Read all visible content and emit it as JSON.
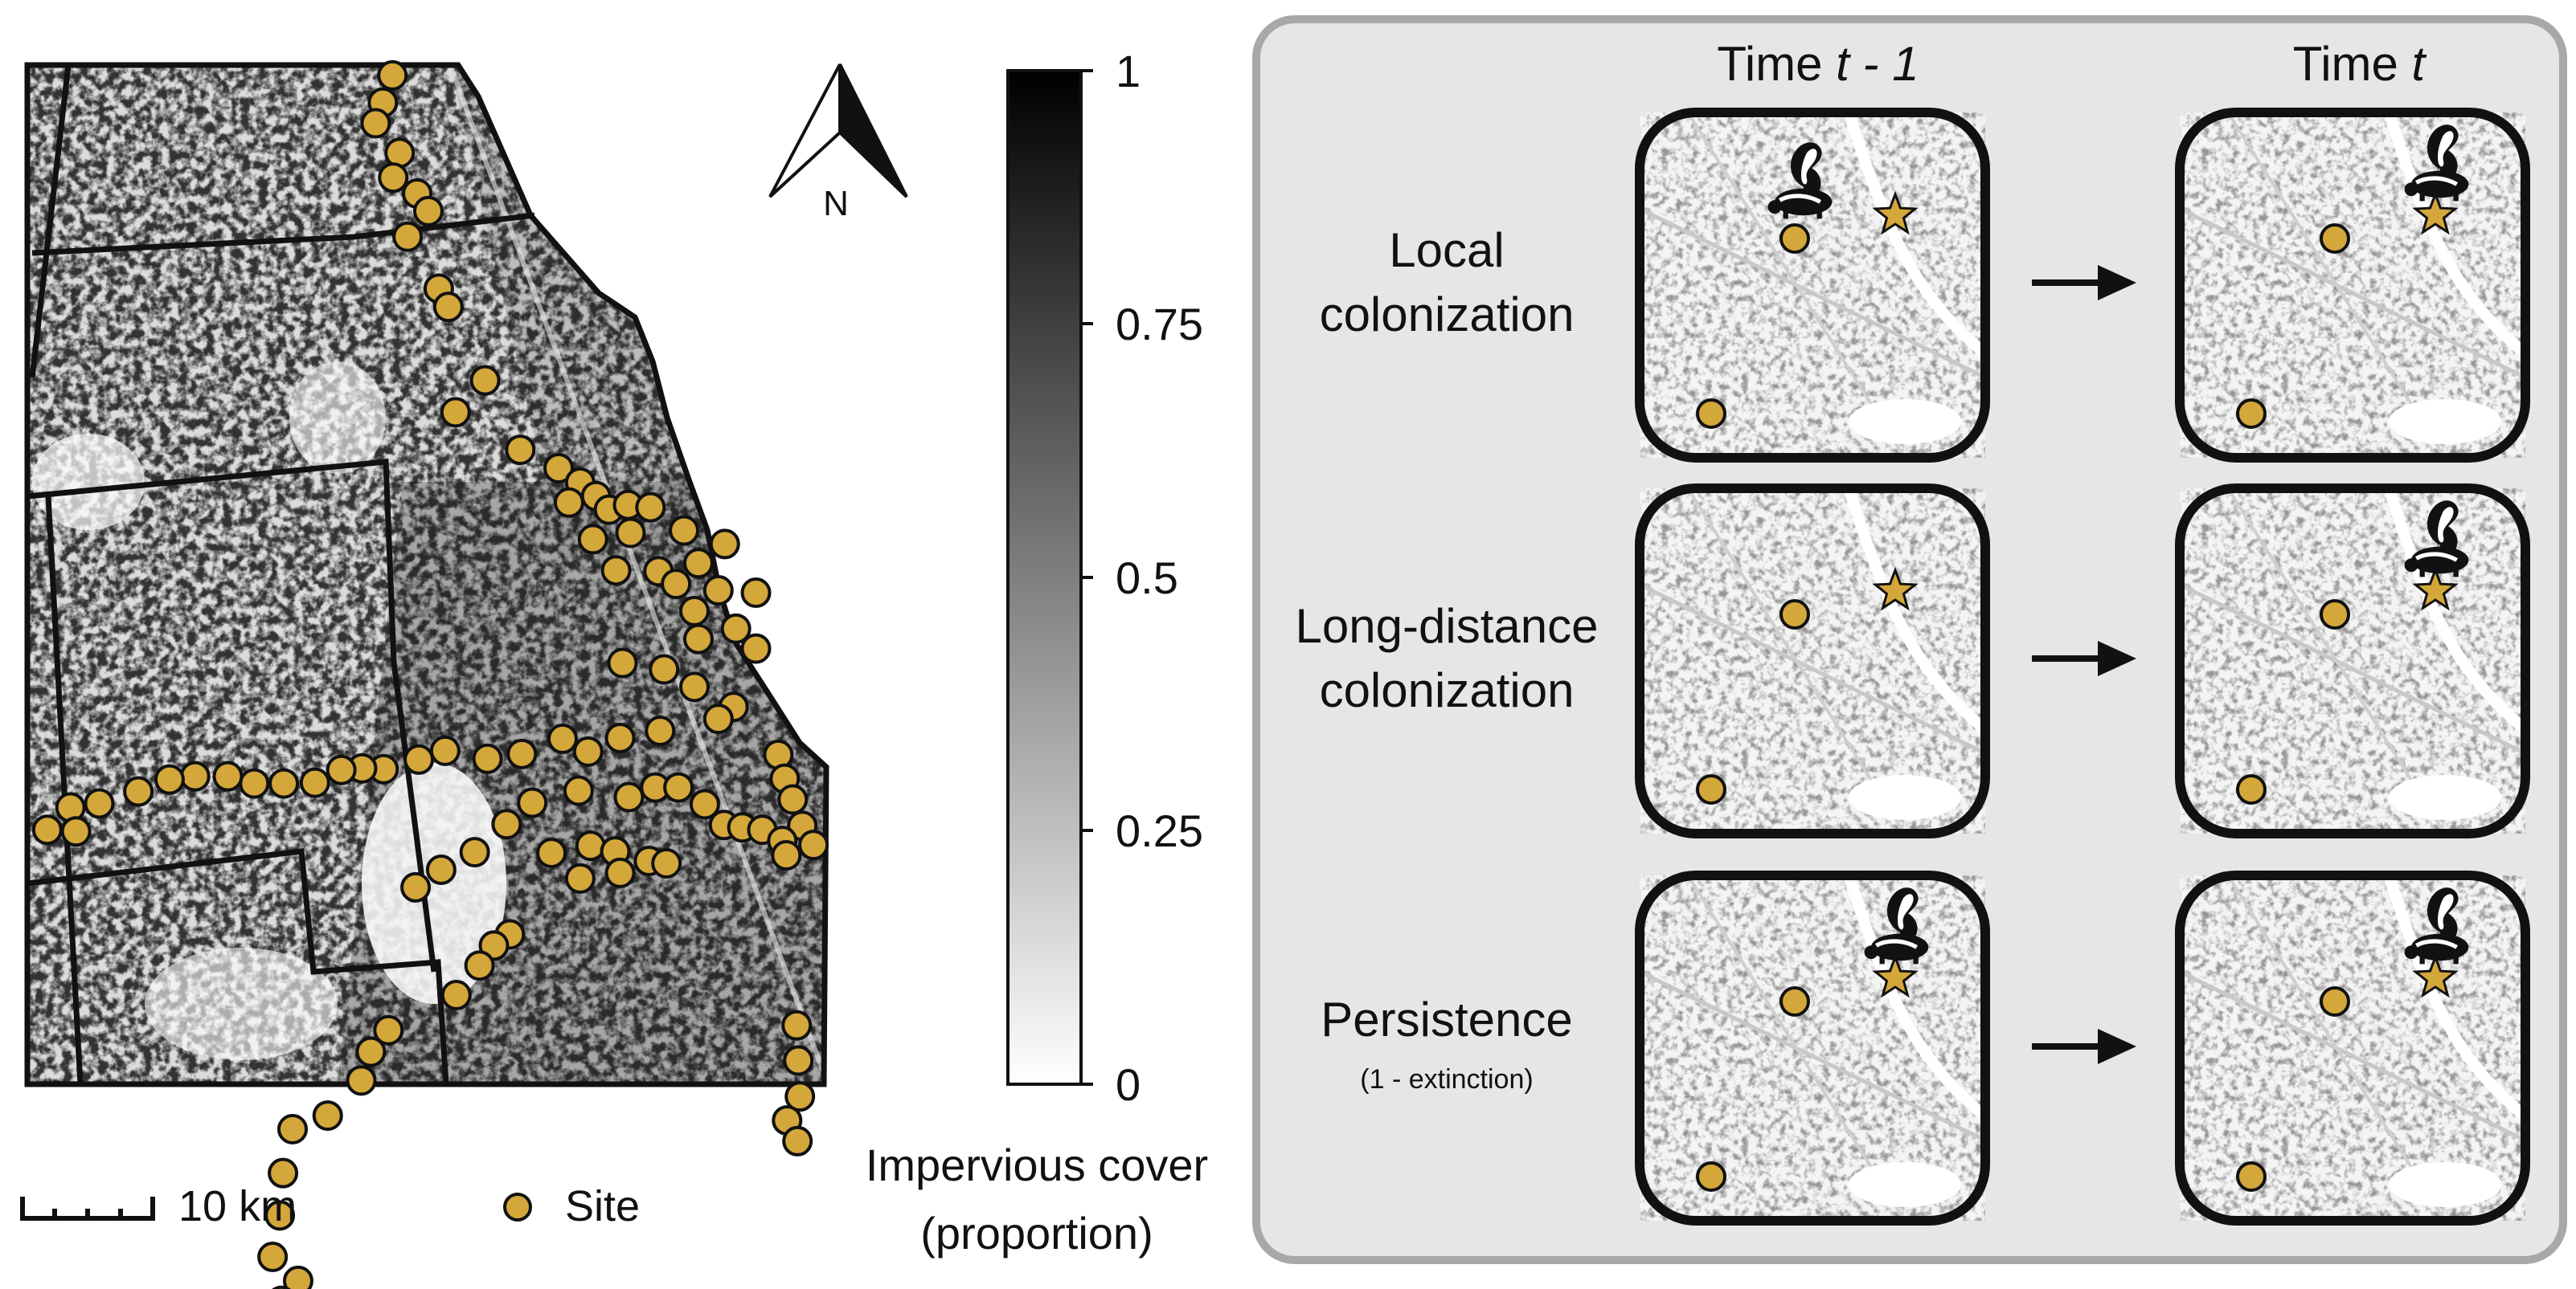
{
  "map": {
    "north_label": "N",
    "scale_label": "10 km",
    "legend_label": "Site",
    "site_color": "#d4a73a",
    "sites": [
      [
        0.457,
        0.013
      ],
      [
        0.445,
        0.047
      ],
      [
        0.436,
        0.073
      ],
      [
        0.466,
        0.11
      ],
      [
        0.458,
        0.141
      ],
      [
        0.488,
        0.161
      ],
      [
        0.502,
        0.183
      ],
      [
        0.476,
        0.215
      ],
      [
        0.515,
        0.28
      ],
      [
        0.527,
        0.303
      ],
      [
        0.573,
        0.395
      ],
      [
        0.536,
        0.435
      ],
      [
        0.617,
        0.482
      ],
      [
        0.665,
        0.505
      ],
      [
        0.692,
        0.523
      ],
      [
        0.712,
        0.54
      ],
      [
        0.728,
        0.557
      ],
      [
        0.752,
        0.551
      ],
      [
        0.78,
        0.554
      ],
      [
        0.755,
        0.586
      ],
      [
        0.822,
        0.583
      ],
      [
        0.873,
        0.6
      ],
      [
        0.84,
        0.624
      ],
      [
        0.678,
        0.548
      ],
      [
        0.708,
        0.594
      ],
      [
        0.737,
        0.633
      ],
      [
        0.79,
        0.634
      ],
      [
        0.812,
        0.65
      ],
      [
        0.865,
        0.658
      ],
      [
        0.912,
        0.661
      ],
      [
        0.835,
        0.684
      ],
      [
        0.84,
        0.719
      ],
      [
        0.887,
        0.706
      ],
      [
        0.912,
        0.731
      ],
      [
        0.745,
        0.749
      ],
      [
        0.797,
        0.757
      ],
      [
        0.835,
        0.779
      ],
      [
        0.884,
        0.804
      ],
      [
        0.865,
        0.819
      ],
      [
        0.792,
        0.834
      ],
      [
        0.742,
        0.843
      ],
      [
        0.702,
        0.86
      ],
      [
        0.67,
        0.844
      ],
      [
        0.619,
        0.863
      ],
      [
        0.576,
        0.869
      ],
      [
        0.523,
        0.859
      ],
      [
        0.49,
        0.87
      ],
      [
        0.446,
        0.882
      ],
      [
        0.419,
        0.881
      ],
      [
        0.393,
        0.883
      ],
      [
        0.36,
        0.899
      ],
      [
        0.321,
        0.9
      ],
      [
        0.284,
        0.9
      ],
      [
        0.251,
        0.891
      ],
      [
        0.21,
        0.891
      ],
      [
        0.178,
        0.895
      ],
      [
        0.139,
        0.91
      ],
      [
        0.09,
        0.925
      ],
      [
        0.054,
        0.93
      ],
      [
        0.061,
        0.96
      ],
      [
        0.025,
        0.958
      ],
      [
        0.94,
        0.864
      ],
      [
        0.948,
        0.894
      ],
      [
        0.958,
        0.92
      ],
      [
        0.97,
        0.953
      ],
      [
        0.984,
        0.977
      ],
      [
        0.69,
        0.909
      ],
      [
        0.753,
        0.917
      ],
      [
        0.786,
        0.905
      ],
      [
        0.815,
        0.905
      ],
      [
        0.848,
        0.926
      ],
      [
        0.872,
        0.952
      ],
      [
        0.895,
        0.955
      ],
      [
        0.92,
        0.958
      ],
      [
        0.945,
        0.972
      ],
      [
        0.95,
        0.99
      ],
      [
        0.656,
        0.987
      ],
      [
        0.705,
        0.978
      ],
      [
        0.736,
        0.985
      ],
      [
        0.778,
        0.997
      ],
      [
        0.8,
        1.0
      ],
      [
        0.742,
        1.012
      ],
      [
        0.692,
        1.019
      ],
      [
        0.632,
        0.924
      ],
      [
        0.6,
        0.951
      ],
      [
        0.56,
        0.986
      ],
      [
        0.518,
        1.008
      ],
      [
        0.486,
        1.03
      ],
      [
        0.604,
        1.089
      ],
      [
        0.584,
        1.103
      ],
      [
        0.566,
        1.128
      ],
      [
        0.537,
        1.165
      ],
      [
        0.452,
        1.209
      ],
      [
        0.43,
        1.236
      ],
      [
        0.418,
        1.272
      ],
      [
        0.376,
        1.316
      ],
      [
        0.332,
        1.333
      ],
      [
        0.32,
        1.388
      ],
      [
        0.316,
        1.441
      ],
      [
        0.307,
        1.493
      ],
      [
        0.339,
        1.523
      ],
      [
        0.318,
        1.548
      ],
      [
        0.963,
        1.203
      ],
      [
        0.965,
        1.247
      ],
      [
        0.967,
        1.292
      ],
      [
        0.951,
        1.322
      ],
      [
        0.964,
        1.348
      ]
    ]
  },
  "colorbar": {
    "ticks": [
      "1",
      "0.75",
      "0.5",
      "0.25",
      "0"
    ],
    "title_line1": "Impervious cover",
    "title_line2": "(proportion)"
  },
  "panel": {
    "col1_prefix": "Time ",
    "col1_var": "t - 1",
    "col2_prefix": "Time ",
    "col2_var": "t",
    "rows": [
      {
        "line1": "Local",
        "line2": "colonization",
        "note": ""
      },
      {
        "line1": "Long-distance",
        "line2": "colonization",
        "note": ""
      },
      {
        "line1": "Persistence",
        "line2": "",
        "note": "(1 - extinction)"
      }
    ],
    "mini_site_color": "#d4a73a",
    "star_color": "#d4a73a"
  }
}
